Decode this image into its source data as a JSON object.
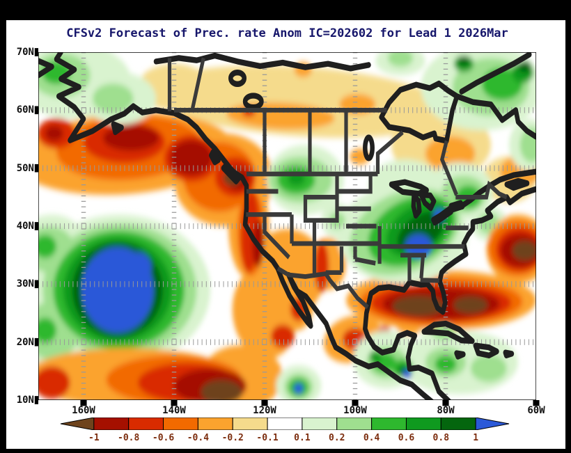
{
  "chart": {
    "title": "CFSv2 Forecast of Prec. rate Anom IC=202602 for Lead 1 2026Mar",
    "title_color": "#16166b"
  },
  "axes": {
    "lat_labels": [
      "70N",
      "60N",
      "50N",
      "40N",
      "30N",
      "20N",
      "10N"
    ],
    "lon_labels": [
      "160W",
      "140W",
      "120W",
      "100W",
      "80W",
      "60W"
    ],
    "label_color": "#111111"
  },
  "colorbar": {
    "labels": [
      "-1",
      "-0.8",
      "-0.6",
      "-0.4",
      "-0.2",
      "-0.1",
      "0.1",
      "0.2",
      "0.4",
      "0.6",
      "0.8",
      "1"
    ],
    "colors": [
      "#6e431c",
      "#a51000",
      "#d92b00",
      "#f26a00",
      "#fba32e",
      "#f5db8c",
      "#ffffff",
      "#d9f3cf",
      "#9fdf8f",
      "#2eb82e",
      "#0f9a1f",
      "#04660e",
      "#2b59d8"
    ],
    "label_color": "#7c2d0e"
  }
}
